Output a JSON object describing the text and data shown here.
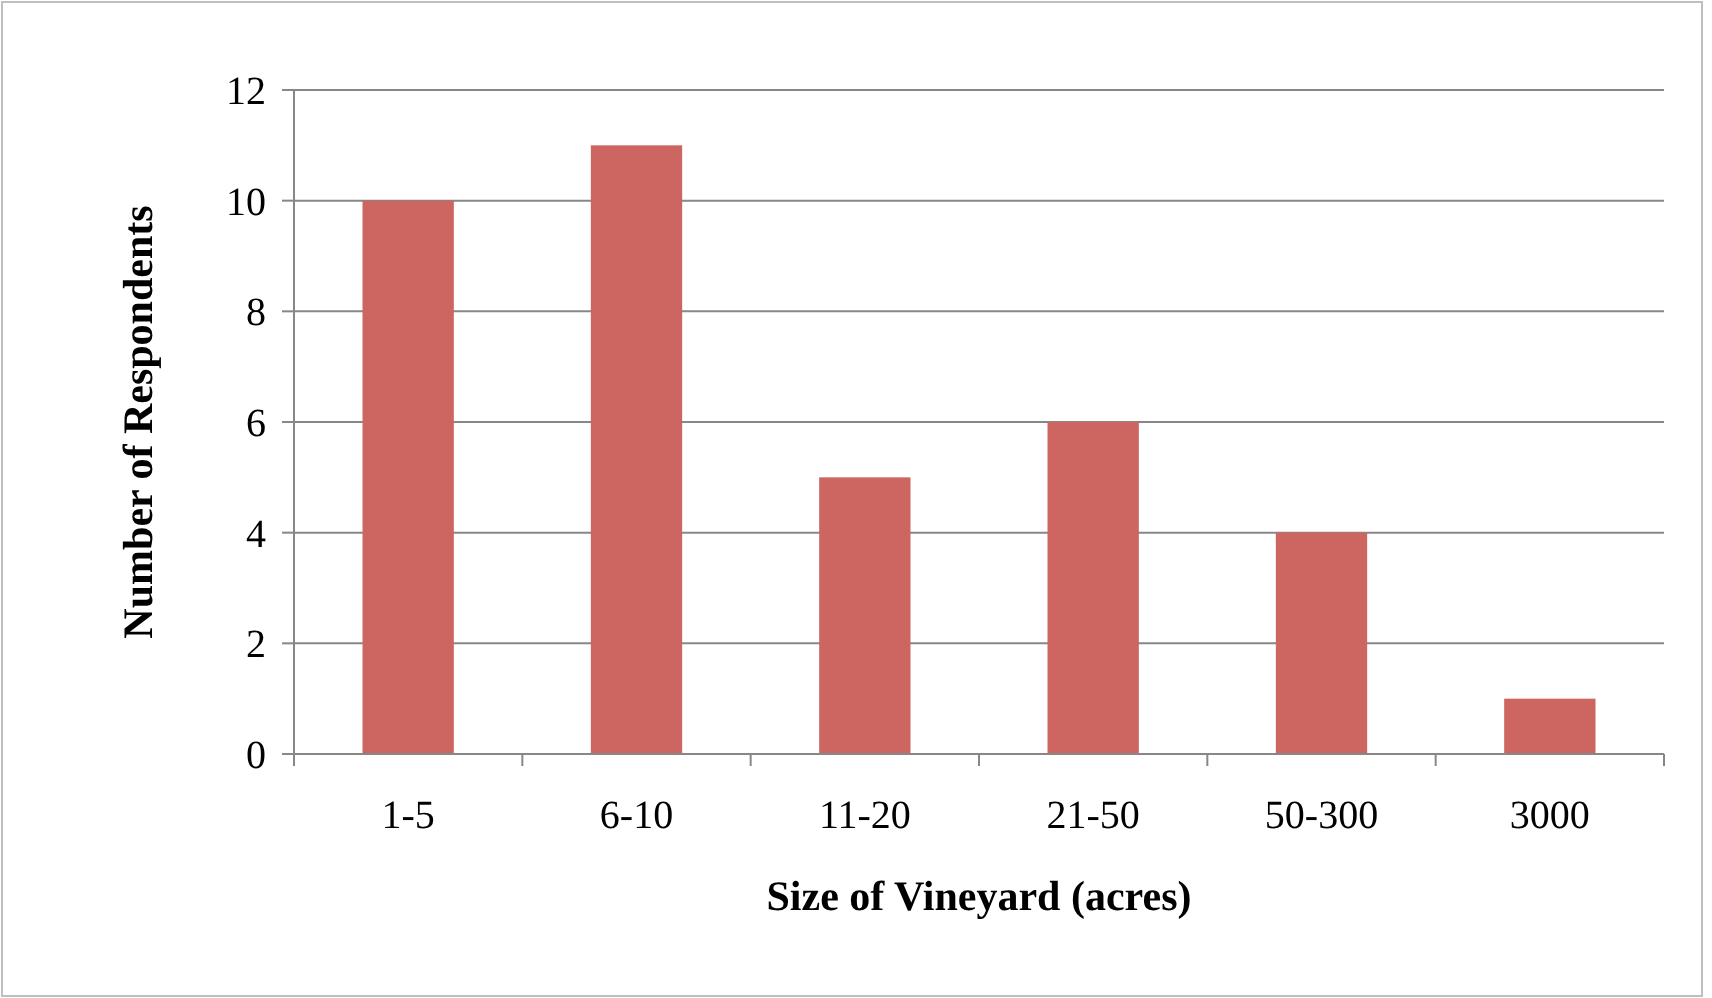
{
  "chart_data": {
    "type": "bar",
    "xlabel": "Size of Vineyard (acres)",
    "ylabel": "Number of Respondents",
    "categories": [
      "1-5",
      "6-10",
      "11-20",
      "21-50",
      "50-300",
      "3000"
    ],
    "values": [
      10,
      11,
      5,
      6,
      4,
      1
    ],
    "color": "#cd6660",
    "ylim": [
      0,
      12
    ],
    "yticks": [
      0,
      2,
      4,
      6,
      8,
      10,
      12
    ],
    "grid": "y"
  }
}
